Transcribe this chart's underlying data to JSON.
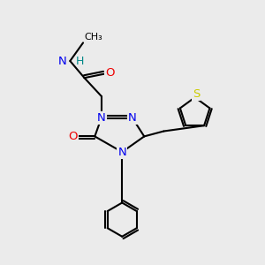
{
  "background_color": "#ebebeb",
  "atom_colors": {
    "N": "#0000ee",
    "O": "#ee0000",
    "S": "#cccc00",
    "C": "#000000",
    "H": "#008888"
  },
  "font_size": 9.5
}
